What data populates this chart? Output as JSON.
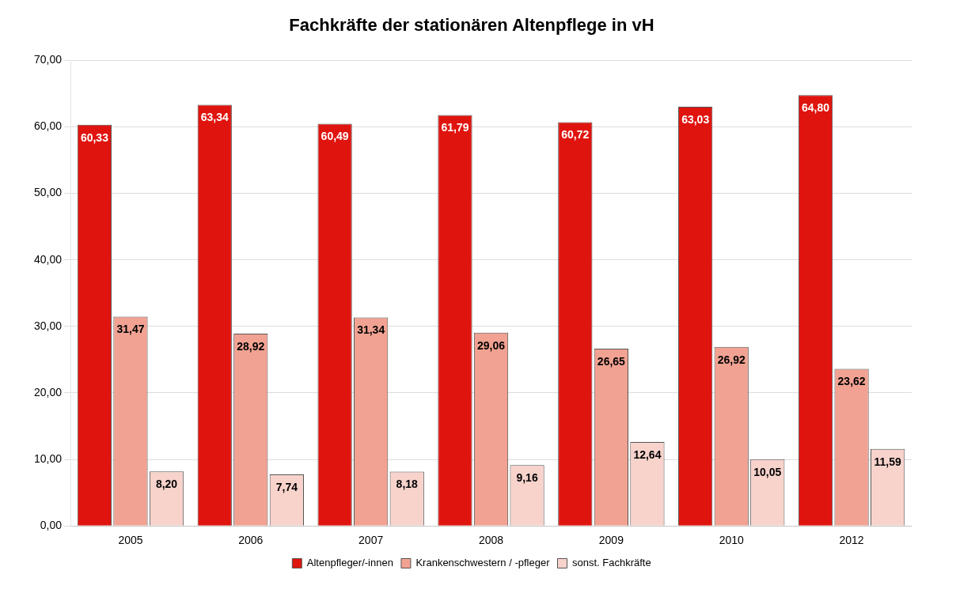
{
  "chart_data": {
    "type": "bar",
    "title": "Fachkräfte der stationären Altenpflege in vH",
    "categories": [
      "2005",
      "2006",
      "2007",
      "2008",
      "2009",
      "2010",
      "2012"
    ],
    "series": [
      {
        "name": "Altenpfleger/-innen",
        "color": "#e0140e",
        "values": [
          60.33,
          63.34,
          60.49,
          61.79,
          60.72,
          63.03,
          64.8
        ],
        "value_labels": [
          "60,33",
          "63,34",
          "60,49",
          "61,79",
          "60,72",
          "63,03",
          "64,80"
        ]
      },
      {
        "name": "Krankenschwestern / -pfleger",
        "color": "#f2a292",
        "values": [
          31.47,
          28.92,
          31.34,
          29.06,
          26.65,
          26.92,
          23.62
        ],
        "value_labels": [
          "31,47",
          "28,92",
          "31,34",
          "29,06",
          "26,65",
          "26,92",
          "23,62"
        ]
      },
      {
        "name": "sonst. Fachkräfte",
        "color": "#f7d3cc",
        "values": [
          8.2,
          7.74,
          8.18,
          9.16,
          12.64,
          10.05,
          11.59
        ],
        "value_labels": [
          "8,20",
          "7,74",
          "8,18",
          "9,16",
          "12,64",
          "10,05",
          "11,59"
        ]
      }
    ],
    "ylim": [
      0,
      70
    ],
    "yticks": [
      {
        "value": 0,
        "label": "0,00"
      },
      {
        "value": 10,
        "label": "10,00"
      },
      {
        "value": 20,
        "label": "20,00"
      },
      {
        "value": 30,
        "label": "30,00"
      },
      {
        "value": 40,
        "label": "40,00"
      },
      {
        "value": 50,
        "label": "50,00"
      },
      {
        "value": 60,
        "label": "60,00"
      },
      {
        "value": 70,
        "label": "70,00"
      }
    ],
    "grid": "y",
    "legend": "bottom"
  }
}
